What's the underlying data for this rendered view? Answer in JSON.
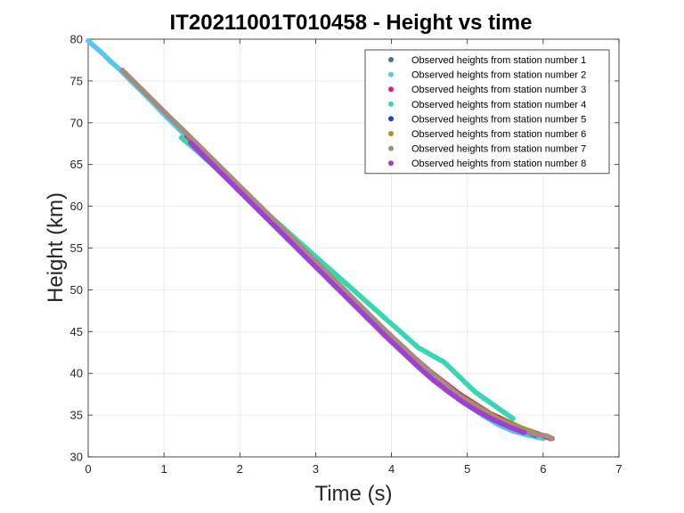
{
  "chart_data": {
    "type": "scatter",
    "title": "IT20211001T010458 - Height vs time",
    "xlabel": "Time (s)",
    "ylabel": "Height (km)",
    "xlim": [
      0,
      7
    ],
    "ylim": [
      30,
      80
    ],
    "xticks": [
      "0",
      "1",
      "2",
      "3",
      "4",
      "5",
      "6",
      "7"
    ],
    "yticks": [
      "30",
      "35",
      "40",
      "45",
      "50",
      "55",
      "60",
      "65",
      "70",
      "75",
      "80"
    ],
    "grid": true,
    "legend_position": "top-right",
    "series": [
      {
        "name": "Observed heights from station number 1",
        "color": "#5a6e8c",
        "x": [
          1.8,
          2.2,
          2.6,
          3.0,
          3.4,
          3.8,
          4.2,
          4.6,
          5.0,
          5.4,
          5.8,
          6.0
        ],
        "y": [
          63.7,
          60.3,
          56.8,
          53.2,
          49.6,
          46.0,
          42.6,
          39.4,
          36.6,
          34.5,
          32.9,
          32.3
        ]
      },
      {
        "name": "Observed heights from station number 2",
        "color": "#55c8f0",
        "x": [
          0.0,
          0.05,
          0.1,
          0.15,
          0.2,
          0.3,
          0.4,
          0.6,
          0.8,
          1.0,
          1.2,
          1.4,
          1.6,
          1.8,
          2.0,
          2.2,
          2.4,
          2.6,
          2.8,
          3.0,
          3.2,
          3.4,
          3.6,
          3.8,
          4.0,
          4.2,
          4.4,
          4.6,
          4.8,
          5.0,
          5.2,
          5.4,
          5.6,
          5.8,
          6.0
        ],
        "y": [
          79.8,
          79.4,
          79.0,
          78.6,
          78.2,
          77.3,
          76.5,
          74.7,
          72.9,
          71.0,
          69.2,
          67.4,
          65.6,
          63.7,
          62.0,
          60.2,
          58.4,
          56.6,
          54.8,
          53.0,
          51.2,
          49.4,
          47.7,
          45.9,
          44.2,
          42.5,
          40.9,
          39.2,
          37.7,
          36.2,
          35.0,
          33.9,
          33.1,
          32.6,
          32.2
        ]
      },
      {
        "name": "Observed heights from station number 3",
        "color": "#d4237a",
        "x": [
          1.3,
          1.7,
          2.1,
          2.5,
          2.9,
          3.3,
          3.7,
          4.1,
          4.5,
          4.9,
          5.3,
          5.7,
          6.1
        ],
        "y": [
          68.4,
          64.8,
          61.2,
          57.7,
          54.1,
          50.5,
          46.9,
          43.5,
          40.3,
          37.5,
          35.2,
          33.5,
          32.2
        ]
      },
      {
        "name": "Observed heights from station number 4",
        "color": "#3ad6b4",
        "x": [
          1.23,
          1.45,
          1.73,
          4.35,
          4.7,
          5.1,
          5.6
        ],
        "y": [
          68.2,
          66.5,
          64.2,
          43.1,
          41.3,
          37.8,
          34.6
        ]
      },
      {
        "name": "Observed heights from station number 5",
        "color": "#2a3ccc",
        "x": [
          2.3,
          2.7,
          3.1,
          3.5,
          3.9,
          4.3,
          4.7,
          5.1,
          5.5,
          5.9
        ],
        "y": [
          59.3,
          55.7,
          52.1,
          48.5,
          44.9,
          41.6,
          38.4,
          35.8,
          34.0,
          32.6
        ]
      },
      {
        "name": "Observed heights from station number 6",
        "color": "#9a9a2a",
        "x": [
          1.9,
          2.4,
          2.9,
          3.4,
          3.9,
          4.4,
          4.9,
          5.4,
          5.9
        ],
        "y": [
          63.2,
          58.8,
          54.3,
          49.8,
          45.3,
          41.0,
          37.3,
          34.6,
          32.8
        ]
      },
      {
        "name": "Observed heights from station number 7",
        "color": "#a68c7c",
        "x": [
          0.45,
          0.55,
          0.65,
          0.75,
          0.85,
          0.95,
          1.05,
          1.15,
          1.3,
          1.5,
          1.7,
          1.9,
          2.1,
          2.3,
          2.5,
          2.7,
          2.9,
          3.1,
          3.3,
          3.5,
          3.7,
          3.9,
          4.1,
          4.3,
          4.5,
          4.7,
          4.9,
          5.1,
          5.3,
          5.5,
          5.7,
          5.9,
          6.05,
          6.12
        ],
        "y": [
          76.3,
          75.4,
          74.5,
          73.6,
          72.7,
          71.8,
          70.9,
          70.0,
          68.7,
          66.9,
          65.1,
          63.3,
          61.5,
          59.7,
          57.9,
          56.1,
          54.3,
          52.5,
          50.7,
          48.9,
          47.1,
          45.3,
          43.6,
          41.9,
          40.2,
          38.7,
          37.2,
          36.0,
          34.9,
          34.0,
          33.2,
          32.7,
          32.5,
          32.2
        ]
      },
      {
        "name": "Observed heights from station number 8",
        "color": "#a040d0",
        "x": [
          1.35,
          1.55,
          1.75,
          1.95,
          2.15,
          2.35,
          2.55,
          2.75,
          2.95,
          3.15,
          3.35,
          3.55,
          3.75,
          3.95,
          4.15,
          4.35,
          4.55,
          4.75,
          4.95,
          5.15,
          5.35,
          5.55,
          5.75
        ],
        "y": [
          67.6,
          65.8,
          64.0,
          62.2,
          60.4,
          58.6,
          56.8,
          55.0,
          53.2,
          51.4,
          49.6,
          47.8,
          46.0,
          44.2,
          42.5,
          40.8,
          39.2,
          37.8,
          36.5,
          35.4,
          34.4,
          33.6,
          32.9
        ]
      }
    ]
  }
}
